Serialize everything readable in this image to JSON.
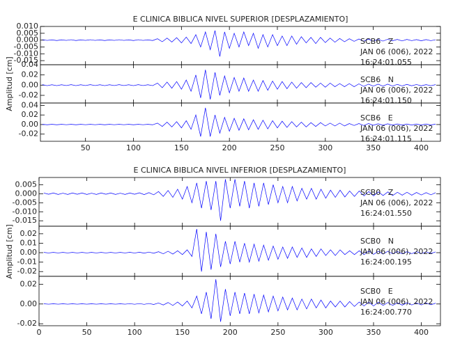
{
  "chart_data": [
    {
      "type": "line",
      "title": "E CLINICA BIBLICA NIVEL SUPERIOR [DESPLAZAMIENTO]",
      "ylabel": "Amplitud [cm]",
      "color": "#0000ff",
      "xlim": [
        3,
        420
      ],
      "xticks": [
        50,
        100,
        150,
        200,
        250,
        300,
        350,
        400
      ],
      "x": [
        5,
        10,
        15,
        20,
        25,
        30,
        35,
        40,
        45,
        50,
        55,
        60,
        65,
        70,
        75,
        80,
        85,
        90,
        95,
        100,
        105,
        110,
        115,
        120,
        125,
        130,
        135,
        140,
        145,
        150,
        155,
        160,
        165,
        170,
        175,
        180,
        185,
        190,
        195,
        200,
        205,
        210,
        215,
        220,
        225,
        230,
        235,
        240,
        245,
        250,
        255,
        260,
        265,
        270,
        275,
        280,
        285,
        290,
        295,
        300,
        305,
        310,
        315,
        320,
        325,
        330,
        335,
        340,
        345,
        350,
        355,
        360,
        365,
        370,
        375,
        380,
        385,
        390,
        395,
        400,
        405,
        410,
        415
      ],
      "panels": [
        {
          "station": "SCB6   Z",
          "date": "JAN 06 (006), 2022",
          "time": "16:24:01.055",
          "ylim": [
            -0.018,
            0.01
          ],
          "yticks": [
            {
              "value": 0.01,
              "label": "0.010"
            },
            0.005,
            {
              "value": 0,
              "label": "0.000"
            },
            -0.005,
            {
              "value": -0.01,
              "label": "-0.010"
            },
            -0.015
          ],
          "values": [
            0.0003,
            -0.0002,
            0.0002,
            -0.0003,
            0.0002,
            -0.0002,
            0.0003,
            -0.0003,
            0.0002,
            -0.0002,
            0.0003,
            -0.0002,
            0.0002,
            -0.0003,
            0.0002,
            -0.0002,
            0.0003,
            -0.0002,
            0.0002,
            -0.0003,
            0.0003,
            -0.0002,
            0.0002,
            -0.0003,
            0.001,
            -0.0012,
            0.0015,
            -0.0014,
            0.0018,
            -0.002,
            0.0022,
            -0.0025,
            0.004,
            -0.005,
            0.006,
            -0.007,
            0.007,
            -0.012,
            0.006,
            -0.006,
            0.005,
            -0.005,
            0.006,
            -0.004,
            0.005,
            -0.006,
            0.004,
            -0.005,
            0.004,
            -0.004,
            0.003,
            -0.004,
            0.003,
            -0.003,
            0.0025,
            -0.002,
            0.002,
            -0.0025,
            0.002,
            -0.0018,
            0.0015,
            -0.0015,
            0.0012,
            -0.0012,
            0.001,
            -0.0009,
            0.0008,
            -0.0008,
            0.0007,
            -0.0008,
            0.0006,
            -0.0007,
            0.0006,
            -0.0005,
            0.0005,
            -0.0006,
            0.0005,
            -0.0004,
            0.0004,
            -0.0005,
            0.0004,
            -0.0004,
            0.0003
          ]
        },
        {
          "station": "SCB6   N",
          "date": "JAN 06 (006), 2022",
          "time": "16:24:01.150",
          "ylim": [
            -0.035,
            0.04
          ],
          "yticks": [
            0.04,
            0.02,
            {
              "value": 0,
              "label": "0.00"
            },
            -0.02
          ],
          "values": [
            0.001,
            -0.001,
            0.0008,
            -0.001,
            0.0008,
            -0.0008,
            0.001,
            -0.001,
            0.0008,
            -0.0008,
            0.001,
            -0.0008,
            0.0008,
            -0.001,
            0.0008,
            -0.0008,
            0.001,
            -0.0008,
            0.0008,
            -0.001,
            0.001,
            -0.0008,
            0.0008,
            -0.001,
            0.004,
            -0.005,
            0.006,
            -0.006,
            0.007,
            -0.008,
            0.01,
            -0.012,
            0.02,
            -0.025,
            0.03,
            -0.028,
            0.025,
            -0.02,
            0.018,
            -0.015,
            0.015,
            -0.012,
            0.014,
            -0.012,
            0.01,
            -0.012,
            0.009,
            -0.01,
            0.008,
            -0.008,
            0.007,
            -0.007,
            0.006,
            -0.006,
            0.005,
            -0.005,
            0.005,
            -0.004,
            0.004,
            -0.004,
            0.004,
            -0.003,
            0.003,
            -0.003,
            0.003,
            -0.003,
            0.0025,
            -0.0025,
            0.002,
            -0.002,
            0.002,
            -0.002,
            0.002,
            -0.0018,
            0.0015,
            -0.0015,
            0.0015,
            -0.0012,
            0.0012,
            -0.0012,
            0.001,
            -0.001,
            0.001
          ]
        },
        {
          "station": "SCB6   E",
          "date": "JAN 06 (006), 2022",
          "time": "16:24:01.115",
          "ylim": [
            -0.035,
            0.045
          ],
          "yticks": [
            0.04,
            0.02,
            {
              "value": 0,
              "label": "0.00"
            },
            -0.02
          ],
          "values": [
            0.0005,
            -0.0005,
            0.0004,
            -0.0005,
            0.0004,
            -0.0004,
            0.0005,
            -0.0005,
            0.0004,
            -0.0004,
            0.0005,
            -0.0004,
            0.0004,
            -0.0005,
            0.0004,
            -0.0004,
            0.0005,
            -0.0004,
            0.0004,
            -0.0005,
            0.0005,
            -0.0004,
            0.0004,
            -0.0005,
            0.003,
            -0.004,
            0.005,
            -0.005,
            0.006,
            -0.007,
            0.008,
            -0.01,
            0.02,
            -0.025,
            0.035,
            -0.025,
            0.02,
            -0.018,
            0.015,
            -0.014,
            0.013,
            -0.012,
            0.012,
            -0.011,
            0.01,
            -0.01,
            0.009,
            -0.009,
            0.008,
            -0.007,
            0.007,
            -0.006,
            0.006,
            -0.005,
            0.005,
            -0.005,
            0.004,
            -0.004,
            0.004,
            -0.003,
            0.003,
            -0.003,
            0.003,
            -0.003,
            0.002,
            -0.002,
            0.002,
            -0.002,
            0.002,
            -0.0015,
            0.0015,
            -0.0015,
            0.0015,
            -0.0012,
            0.0012,
            -0.0012,
            0.001,
            -0.001,
            0.001,
            -0.001,
            0.001,
            -0.0008,
            0.0008
          ]
        }
      ]
    },
    {
      "type": "line",
      "title": "E CLINICA BIBLICA NIVEL INFERIOR [DESPLAZAMIENTO]",
      "ylabel": "Amplitud [cm]",
      "color": "#0000ff",
      "xlim": [
        0,
        420
      ],
      "xticks": [
        0,
        50,
        100,
        150,
        200,
        250,
        300,
        350,
        400
      ],
      "x": [
        5,
        10,
        15,
        20,
        25,
        30,
        35,
        40,
        45,
        50,
        55,
        60,
        65,
        70,
        75,
        80,
        85,
        90,
        95,
        100,
        105,
        110,
        115,
        120,
        125,
        130,
        135,
        140,
        145,
        150,
        155,
        160,
        165,
        170,
        175,
        180,
        185,
        190,
        195,
        200,
        205,
        210,
        215,
        220,
        225,
        230,
        235,
        240,
        245,
        250,
        255,
        260,
        265,
        270,
        275,
        280,
        285,
        290,
        295,
        300,
        305,
        310,
        315,
        320,
        325,
        330,
        335,
        340,
        345,
        350,
        355,
        360,
        365,
        370,
        375,
        380,
        385,
        390,
        395,
        400,
        405,
        410,
        415
      ],
      "panels": [
        {
          "station": "SCB0   Z",
          "date": "JAN 06 (006), 2022",
          "time": "16:24:01.550",
          "ylim": [
            -0.018,
            0.009
          ],
          "yticks": [
            0.005,
            {
              "value": 0,
              "label": "0.000"
            },
            -0.005,
            {
              "value": -0.01,
              "label": "-0.010"
            },
            -0.015
          ],
          "values": [
            0.0004,
            -0.0003,
            0.0004,
            -0.0004,
            0.0003,
            -0.0004,
            0.0004,
            -0.0003,
            0.0004,
            -0.0004,
            0.0003,
            -0.0004,
            0.0004,
            -0.0003,
            0.0004,
            -0.0004,
            0.0003,
            -0.0004,
            0.0004,
            -0.0003,
            0.0005,
            -0.0005,
            0.0006,
            -0.0006,
            0.0012,
            -0.0015,
            0.0018,
            -0.002,
            0.0025,
            -0.003,
            0.004,
            -0.005,
            0.006,
            -0.008,
            0.007,
            -0.009,
            0.007,
            -0.015,
            0.008,
            -0.008,
            0.008,
            -0.007,
            0.007,
            -0.008,
            0.006,
            -0.007,
            0.006,
            -0.006,
            0.005,
            -0.005,
            0.004,
            -0.005,
            0.004,
            -0.004,
            0.003,
            -0.003,
            0.003,
            -0.003,
            0.0025,
            -0.0025,
            0.002,
            -0.002,
            0.002,
            -0.0018,
            0.0015,
            -0.0015,
            0.0015,
            -0.0012,
            0.0012,
            -0.0012,
            0.001,
            -0.001,
            0.001,
            -0.001,
            0.0008,
            -0.0008,
            0.0008,
            -0.0008,
            0.0007,
            -0.0007,
            0.0006,
            -0.0006,
            0.0006
          ]
        },
        {
          "station": "SCB0   N",
          "date": "JAN 06 (006), 2022",
          "time": "16:24:00.195",
          "ylim": [
            -0.025,
            0.028
          ],
          "yticks": [
            0.02,
            0.01,
            {
              "value": 0,
              "label": "0.00"
            },
            -0.01,
            -0.02
          ],
          "values": [
            0.0003,
            -0.0003,
            0.0003,
            -0.0003,
            0.0003,
            -0.0003,
            0.0003,
            -0.0003,
            0.0003,
            -0.0003,
            0.0003,
            -0.0003,
            0.0003,
            -0.0003,
            0.0003,
            -0.0003,
            0.0003,
            -0.0003,
            0.0004,
            -0.0004,
            0.0005,
            -0.0005,
            0.0006,
            -0.0006,
            0.001,
            -0.0012,
            0.0015,
            -0.0015,
            0.002,
            -0.002,
            0.003,
            -0.004,
            0.025,
            -0.02,
            0.022,
            -0.018,
            0.02,
            -0.015,
            0.012,
            -0.012,
            0.012,
            -0.01,
            0.01,
            -0.01,
            0.009,
            -0.009,
            0.008,
            -0.008,
            0.007,
            -0.007,
            0.006,
            -0.006,
            0.006,
            -0.005,
            0.005,
            -0.005,
            0.004,
            -0.004,
            0.004,
            -0.003,
            0.003,
            -0.003,
            0.003,
            -0.002,
            0.002,
            -0.002,
            0.002,
            -0.002,
            0.0018,
            -0.0018,
            0.0015,
            -0.0015,
            0.0015,
            -0.0012,
            0.0012,
            -0.0012,
            0.001,
            -0.001,
            0.001,
            -0.001,
            0.0008,
            -0.0008,
            0.0008
          ]
        },
        {
          "station": "SCB0   E",
          "date": "JAN 06 (006), 2022",
          "time": "16:24:00.770",
          "ylim": [
            -0.022,
            0.028
          ],
          "yticks": [
            0.02,
            {
              "value": 0,
              "label": "0.00"
            },
            -0.02
          ],
          "values": [
            0.0002,
            -0.0002,
            0.0002,
            -0.0002,
            0.0002,
            -0.0002,
            0.0002,
            -0.0002,
            0.0002,
            -0.0002,
            0.0002,
            -0.0002,
            0.0002,
            -0.0002,
            0.0002,
            -0.0002,
            0.0002,
            -0.0002,
            0.0003,
            -0.0003,
            0.0004,
            -0.0004,
            0.0005,
            -0.0005,
            0.001,
            -0.001,
            0.0015,
            -0.0015,
            0.002,
            -0.002,
            0.003,
            -0.004,
            0.008,
            -0.01,
            0.012,
            -0.015,
            0.025,
            -0.018,
            0.015,
            -0.012,
            0.012,
            -0.01,
            0.011,
            -0.01,
            0.01,
            -0.009,
            0.009,
            -0.008,
            0.008,
            -0.007,
            0.007,
            -0.006,
            0.006,
            -0.006,
            0.005,
            -0.005,
            0.005,
            -0.004,
            0.004,
            -0.004,
            0.003,
            -0.003,
            0.003,
            -0.003,
            0.0025,
            -0.0025,
            0.002,
            -0.002,
            0.002,
            -0.002,
            0.0018,
            -0.0015,
            0.0015,
            -0.0015,
            0.0012,
            -0.0012,
            0.0012,
            -0.001,
            0.001,
            -0.001,
            0.001,
            -0.0008,
            0.0008
          ]
        }
      ]
    }
  ]
}
